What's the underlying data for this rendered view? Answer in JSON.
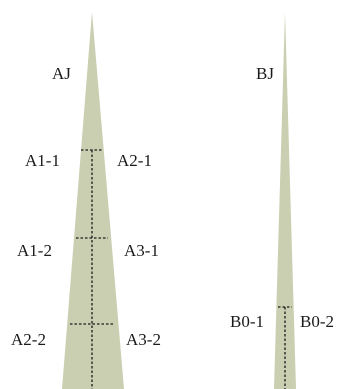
{
  "diagram": {
    "fill_color": "#c9cfb0",
    "line_color": "#1a1a1a",
    "spike_a": {
      "title": "AJ",
      "left_labels": [
        "A1-1",
        "A1-2",
        "A2-2"
      ],
      "right_labels": [
        "A2-1",
        "A3-1",
        "A3-2"
      ]
    },
    "spike_b": {
      "title": "BJ",
      "left_labels": [
        "B0-1"
      ],
      "right_labels": [
        "B0-2"
      ]
    }
  }
}
